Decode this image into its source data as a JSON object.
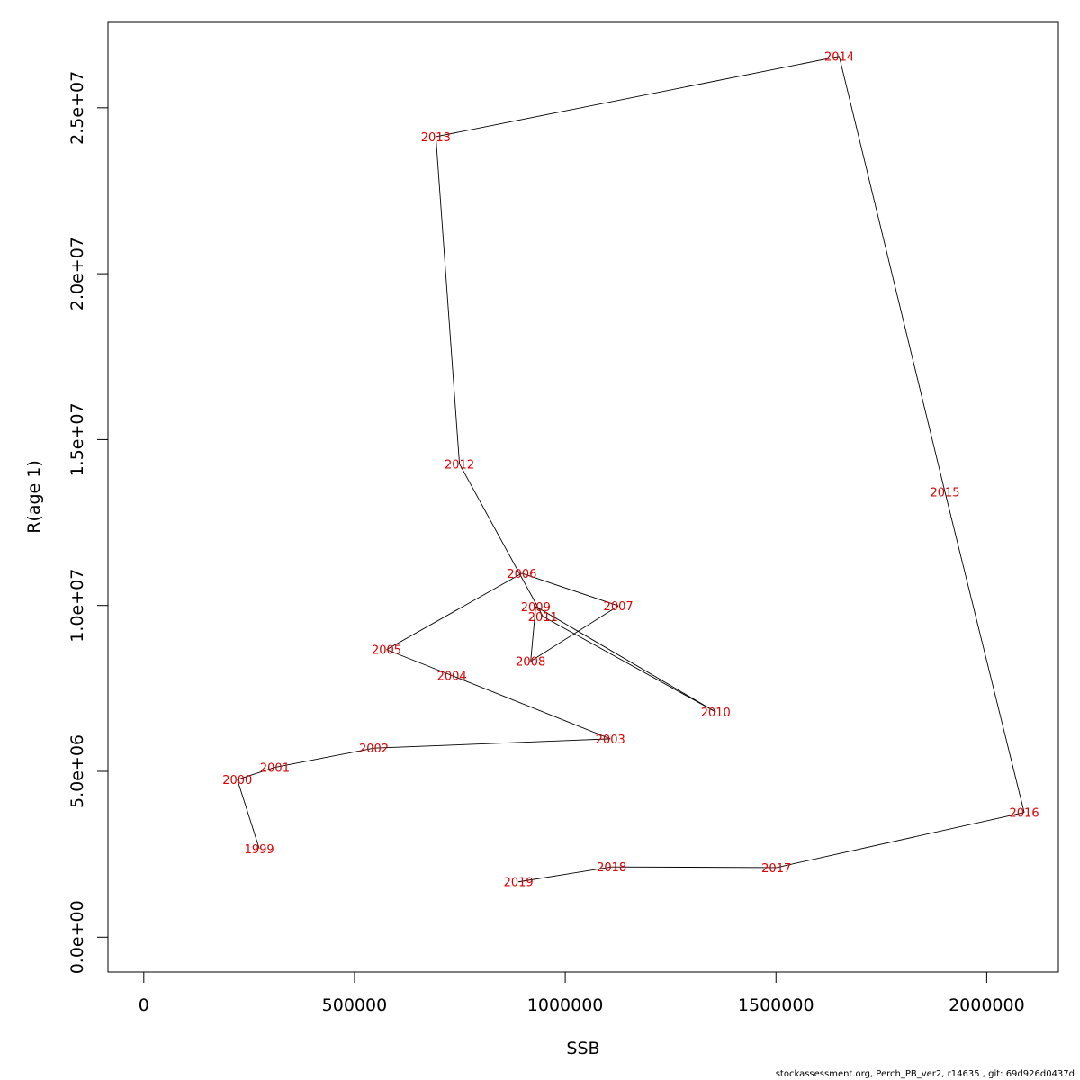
{
  "chart_data": {
    "type": "line",
    "xlabel": "SSB",
    "ylabel": "R(age 1)",
    "xlim": [
      -85000,
      2170000
    ],
    "ylim": [
      -1050000,
      27600000
    ],
    "x_ticks": [
      0,
      500000,
      1000000,
      1500000,
      2000000
    ],
    "x_tick_labels": [
      "0",
      "500000",
      "1000000",
      "1500000",
      "2000000"
    ],
    "y_ticks": [
      0,
      5000000,
      10000000,
      15000000,
      20000000,
      25000000
    ],
    "y_tick_labels": [
      "0.0e+00",
      "5.0e+06",
      "1.0e+07",
      "1.5e+07",
      "2.0e+07",
      "2.5e+07"
    ],
    "grid": false,
    "line_color": "#000000",
    "label_color": "#e00000",
    "points": [
      {
        "label": "1999",
        "x": 274000,
        "y": 2670000
      },
      {
        "label": "2000",
        "x": 222000,
        "y": 4750000
      },
      {
        "label": "2001",
        "x": 311000,
        "y": 5120000
      },
      {
        "label": "2002",
        "x": 546000,
        "y": 5700000
      },
      {
        "label": "2003",
        "x": 1107000,
        "y": 5980000
      },
      {
        "label": "2004",
        "x": 731000,
        "y": 7890000
      },
      {
        "label": "2005",
        "x": 576000,
        "y": 8670000
      },
      {
        "label": "2006",
        "x": 897000,
        "y": 10970000
      },
      {
        "label": "2007",
        "x": 1126000,
        "y": 9990000
      },
      {
        "label": "2008",
        "x": 918000,
        "y": 8320000
      },
      {
        "label": "2009",
        "x": 930000,
        "y": 9970000
      },
      {
        "label": "2010",
        "x": 1357000,
        "y": 6790000
      },
      {
        "label": "2011",
        "x": 947000,
        "y": 9670000
      },
      {
        "label": "2012",
        "x": 749000,
        "y": 14270000
      },
      {
        "label": "2013",
        "x": 693000,
        "y": 24130000
      },
      {
        "label": "2014",
        "x": 1650000,
        "y": 26550000
      },
      {
        "label": "2015",
        "x": 1901000,
        "y": 13420000
      },
      {
        "label": "2016",
        "x": 2089000,
        "y": 3760000
      },
      {
        "label": "2017",
        "x": 1501000,
        "y": 2100000
      },
      {
        "label": "2018",
        "x": 1110000,
        "y": 2120000
      },
      {
        "label": "2019",
        "x": 889000,
        "y": 1670000
      }
    ]
  },
  "footer_text": "stockassessment.org, Perch_PB_ver2, r14635 , git: 69d926d0437d"
}
